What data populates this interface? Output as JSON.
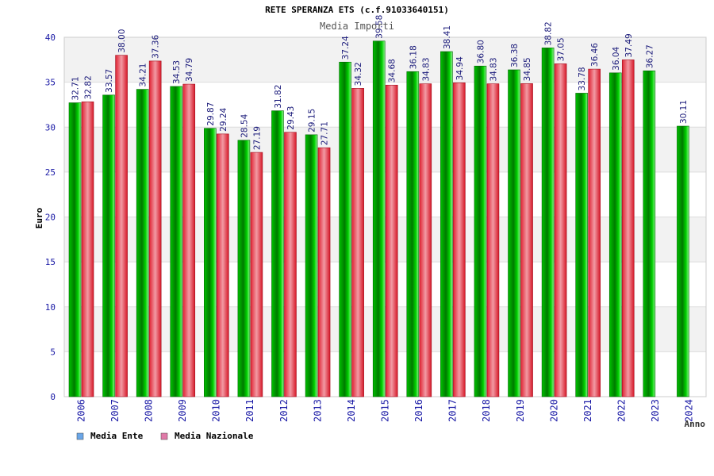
{
  "chart_data": {
    "type": "bar",
    "title": "RETE SPERANZA ETS (c.f.91033640151)",
    "subtitle": "Media Importi",
    "xlabel": "Anno",
    "ylabel": "Euro",
    "ylim": [
      0,
      40
    ],
    "yticks": [
      "0",
      "5",
      "10",
      "15",
      "20",
      "25",
      "30",
      "35",
      "40"
    ],
    "grid": true,
    "legend_position": "bottom-left",
    "categories": [
      "2006",
      "2007",
      "2008",
      "2009",
      "2010",
      "2011",
      "2012",
      "2013",
      "2014",
      "2015",
      "2016",
      "2017",
      "2018",
      "2019",
      "2020",
      "2021",
      "2022",
      "2023",
      "2024"
    ],
    "series": [
      {
        "name": "Media Ente",
        "color": "#00a000",
        "values": [
          32.71,
          33.57,
          34.21,
          34.53,
          29.87,
          28.54,
          31.82,
          29.15,
          37.24,
          39.58,
          36.18,
          38.41,
          36.8,
          36.38,
          38.82,
          33.78,
          36.04,
          36.27,
          30.11
        ],
        "labels": [
          "32.71",
          "33.57",
          "34.21",
          "34.53",
          "29.87",
          "28.54",
          "31.82",
          "29.15",
          "37.24",
          "39.58",
          "36.18",
          "38.41",
          "36.80",
          "36.38",
          "38.82",
          "33.78",
          "36.04",
          "36.27",
          "30.11"
        ]
      },
      {
        "name": "Media Nazionale",
        "color": "#e0303a",
        "values": [
          32.82,
          38.0,
          37.36,
          34.79,
          29.24,
          27.19,
          29.43,
          27.71,
          34.32,
          34.68,
          34.83,
          34.94,
          34.83,
          34.85,
          37.05,
          36.46,
          37.49,
          null,
          null
        ],
        "labels": [
          "32.82",
          "38.00",
          "37.36",
          "34.79",
          "29.24",
          "27.19",
          "29.43",
          "27.71",
          "34.32",
          "34.68",
          "34.83",
          "34.94",
          "34.83",
          "34.85",
          "37.05",
          "36.46",
          "37.49",
          "",
          ""
        ]
      }
    ],
    "legend": [
      {
        "name": "Media Ente",
        "color": "#6aa6e8"
      },
      {
        "name": "Media Nazionale",
        "color": "#e07aa8"
      }
    ]
  }
}
